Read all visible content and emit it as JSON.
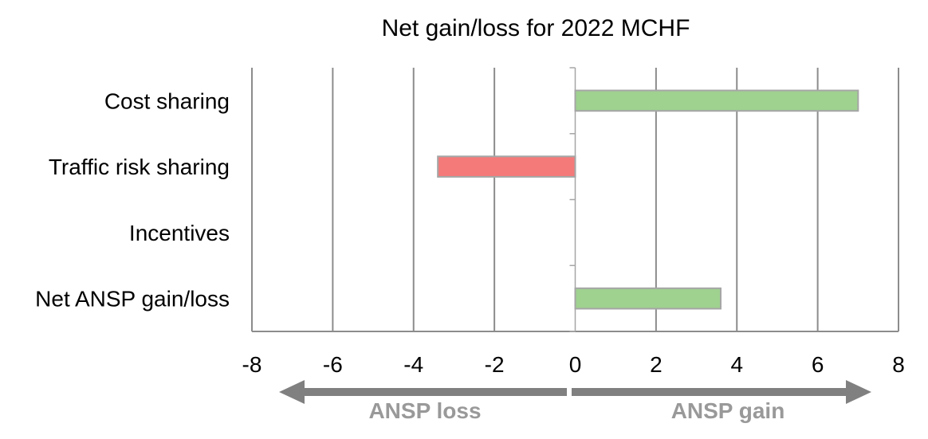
{
  "chart_data": {
    "type": "bar",
    "orientation": "horizontal",
    "title": "Net gain/loss for 2022 MCHF",
    "categories": [
      "Cost sharing",
      "Traffic risk sharing",
      "Incentives",
      "Net ANSP gain/loss"
    ],
    "values": [
      7.0,
      -3.4,
      0,
      3.6
    ],
    "xlim": [
      -8,
      8
    ],
    "xticks": [
      "-8",
      "-6",
      "-4",
      "-2",
      "0",
      "2",
      "4",
      "6",
      "8"
    ],
    "grid": true,
    "arrows": {
      "left_label": "ANSP loss",
      "right_label": "ANSP gain"
    },
    "colors": {
      "positive": "#9fd18f",
      "negative": "#f47a7a",
      "bar_border": "#a6a6a6",
      "grid": "#8c8c8c",
      "arrow": "#808080",
      "arrow_label": "#999999"
    }
  }
}
